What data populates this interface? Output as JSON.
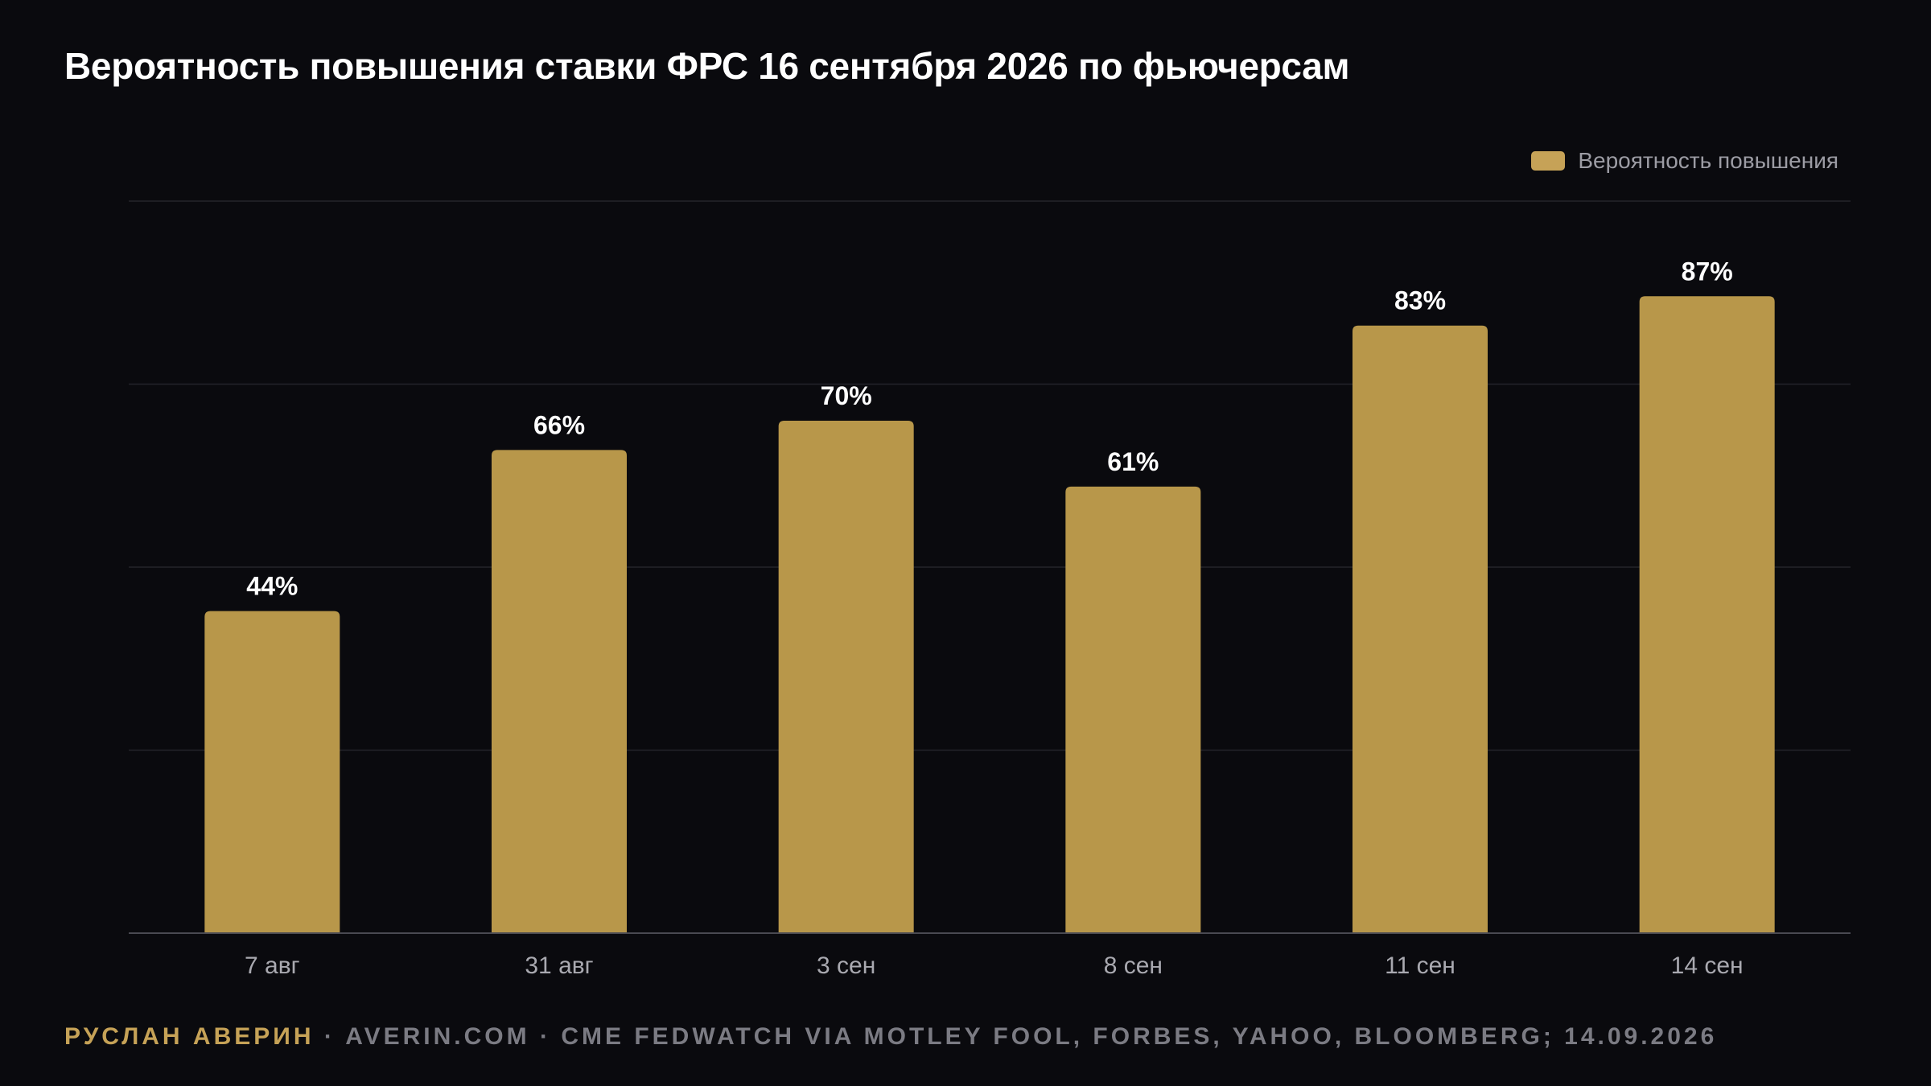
{
  "header": {
    "title": "Вероятность повышения ставки ФРС 16 сентября 2026 по фьючерсам"
  },
  "legend": {
    "label": "Вероятность повышения"
  },
  "colors": {
    "background": "#0a0a0e",
    "bar": "#b8974a",
    "legend_swatch": "#c6a257",
    "grid": "#24242a",
    "axis": "#4a4a52",
    "tick_label": "#a9a9b0",
    "value_label": "#ffffff",
    "author": "#c6a257",
    "footer": "#7b7b83"
  },
  "chart_data": {
    "type": "bar",
    "categories": [
      "7 авг",
      "31 авг",
      "3 сен",
      "8 сен",
      "11 сен",
      "14 сен"
    ],
    "series": [
      {
        "name": "Вероятность повышения",
        "values": [
          44,
          66,
          70,
          61,
          83,
          87
        ]
      }
    ],
    "value_labels": [
      "44%",
      "66%",
      "70%",
      "61%",
      "83%",
      "87%"
    ],
    "ylim": [
      0,
      100
    ],
    "grid": true,
    "legend_position": "top-right"
  },
  "footer": {
    "author": "РУСЛАН АВЕРИН",
    "site": "AVERIN.COM",
    "source": "CME FEDWATCH VIA MOTLEY FOOL, FORBES, YAHOO, BLOOMBERG; 14.09.2026",
    "separator": "·"
  }
}
